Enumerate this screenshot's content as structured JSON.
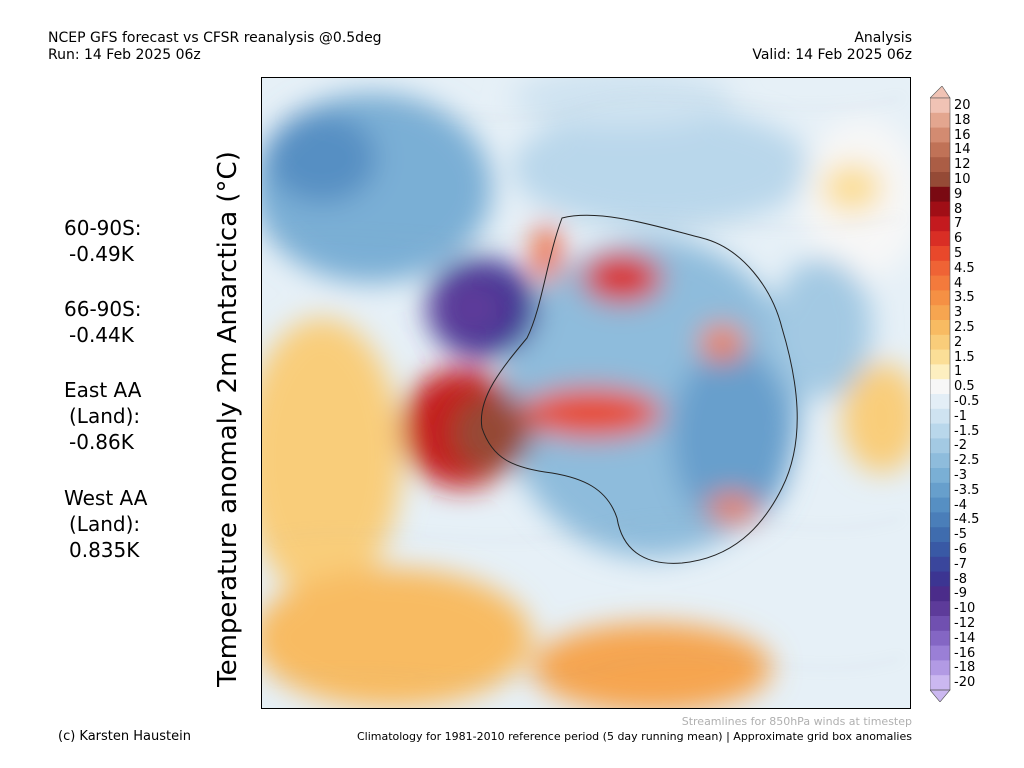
{
  "header": {
    "title": "NCEP GFS forecast vs CFSR reanalysis @0.5deg",
    "run": "Run: 14 Feb 2025 06z",
    "type": "Analysis",
    "valid": "Valid: 14 Feb 2025 06z"
  },
  "ylabel": "Temperature anomaly 2m Antarctica (°C)",
  "stats": [
    {
      "label": "60-90S:",
      "value": "-0.49K"
    },
    {
      "label": "66-90S:",
      "value": "-0.44K"
    },
    {
      "label": "East AA",
      "sub": "(Land):",
      "value": "-0.86K"
    },
    {
      "label": "West AA",
      "sub": "(Land):",
      "value": "0.835K"
    }
  ],
  "colorbar": {
    "labels": [
      "20",
      "18",
      "16",
      "14",
      "12",
      "10",
      "9",
      "8",
      "7",
      "6",
      "5",
      "4.5",
      "4",
      "3.5",
      "3",
      "2.5",
      "2",
      "1.5",
      "1",
      "0.5",
      "-0.5",
      "-1",
      "-1.5",
      "-2",
      "-2.5",
      "-3",
      "-3.5",
      "-4",
      "-4.5",
      "-5",
      "-6",
      "-7",
      "-8",
      "-9",
      "-10",
      "-12",
      "-14",
      "-16",
      "-18",
      "-20"
    ],
    "colors": [
      "#f0c3b5",
      "#e3a68f",
      "#d38b71",
      "#c07257",
      "#ab5d45",
      "#954a36",
      "#7a0a12",
      "#a00e16",
      "#c41a1f",
      "#d92e25",
      "#e8482b",
      "#ef6335",
      "#f37a3c",
      "#f59044",
      "#f6a550",
      "#f8bb62",
      "#f9cd7a",
      "#fbde97",
      "#fdefc0",
      "#f7f7f7",
      "#e3eef6",
      "#cfe3f1",
      "#b9d7eb",
      "#a3c9e3",
      "#8ebcdc",
      "#7aafd5",
      "#679fcc",
      "#568fc3",
      "#4a7eb9",
      "#3f6cae",
      "#3959a5",
      "#3a469c",
      "#3c3592",
      "#4b2c8a",
      "#5d3b9a",
      "#7050b0",
      "#8466c4",
      "#9a7fd6",
      "#b29ae4",
      "#cbb8f0"
    ]
  },
  "footer": {
    "streamlines": "Streamlines for 850hPa winds at timestep",
    "copyright": "(c) Karsten Haustein",
    "climatology": "Climatology for 1981-2010 reference period (5 day running mean) | Approximate grid box anomalies"
  }
}
